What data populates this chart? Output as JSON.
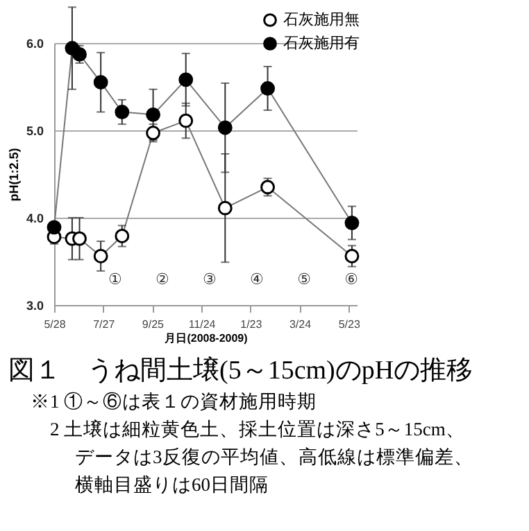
{
  "chart_data": {
    "type": "line",
    "title": "図１　うね間土壌(5～15cm)のpHの推移",
    "xlabel": "月日(2008-2009)",
    "ylabel": "pH(1:2.5)",
    "x": [
      "2008-05-28",
      "2008-06-19",
      "2008-06-28",
      "2008-07-24",
      "2008-08-19",
      "2008-09-26",
      "2008-11-05",
      "2008-12-23",
      "2009-02-13",
      "2009-05-27"
    ],
    "series": [
      {
        "name": "石灰施用無",
        "color": "#ffffff",
        "values": [
          3.78,
          3.76,
          3.76,
          3.56,
          3.79,
          4.97,
          5.11,
          4.11,
          4.35,
          3.56
        ],
        "errors": [
          0.08,
          0.24,
          0.24,
          0.17,
          0.12,
          0.1,
          0.2,
          0.62,
          0.1,
          0.12
        ]
      },
      {
        "name": "石灰施用有",
        "color": "#000000",
        "values": [
          3.89,
          5.94,
          5.87,
          5.55,
          5.21,
          5.18,
          5.58,
          5.03,
          5.48,
          3.94
        ],
        "errors": [
          0.05,
          0.47,
          0.1,
          0.34,
          0.14,
          0.29,
          0.3,
          0.51,
          0.25,
          0.19
        ]
      }
    ],
    "xlim": [
      "2008-05-28",
      "2009-06-02"
    ],
    "xticks": [
      {
        "value": "2008-05-28",
        "label": "5/28"
      },
      {
        "value": "2008-07-27",
        "label": "7/27"
      },
      {
        "value": "2008-09-25",
        "label": "9/25"
      },
      {
        "value": "2008-11-24",
        "label": "11/24"
      },
      {
        "value": "2009-01-23",
        "label": "1/23"
      },
      {
        "value": "2009-03-24",
        "label": "3/24"
      },
      {
        "value": "2009-05-23",
        "label": "5/23"
      }
    ],
    "ylim": [
      3,
      6
    ],
    "yticks": [
      {
        "value": 3,
        "label": "3.0"
      },
      {
        "value": 4,
        "label": "4.0"
      },
      {
        "value": 5,
        "label": "5.0"
      },
      {
        "value": 6,
        "label": "6.0"
      }
    ],
    "grid": "y",
    "legend": "top right",
    "marker": "circle",
    "annotations": [
      "①",
      "②",
      "③",
      "④",
      "⑤",
      "⑥",
      "※1 ①～⑥は表１の資材施用時期",
      "2 土壌は細粒黄色土、採土位置は深さ5～15cm、",
      "データは3反復の平均値、高低線は標準偏差、",
      "横軸目盛りは60日間隔"
    ]
  }
}
